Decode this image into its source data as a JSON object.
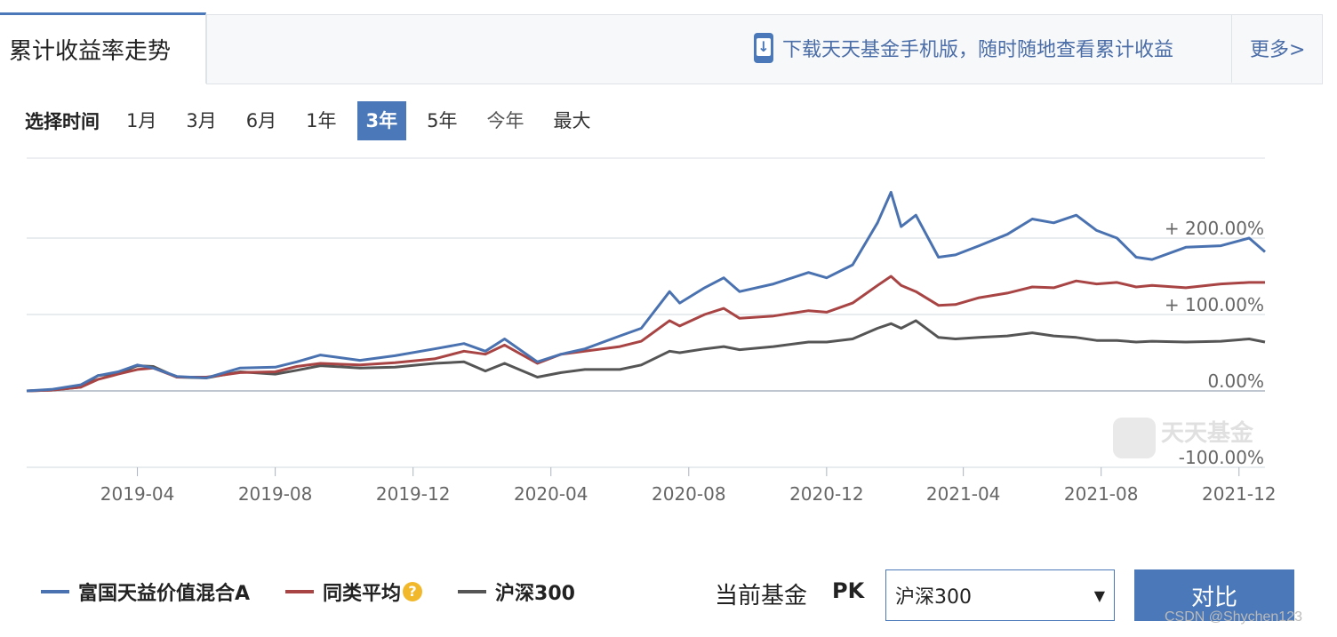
{
  "header": {
    "active_tab": "累计收益率走势",
    "promo_text": "下载天天基金手机版，随时随地查看累计收益",
    "more_label": "更多>"
  },
  "periods": {
    "label": "选择时间",
    "options": [
      "1月",
      "3月",
      "6月",
      "1年",
      "3年",
      "5年",
      "今年",
      "最大"
    ],
    "active": "3年"
  },
  "chart_watermark": "天天基金",
  "legend": {
    "fund": "富国天益价值混合A",
    "category_avg": "同类平均",
    "index": "沪深300"
  },
  "compare": {
    "label": "当前基金",
    "pk": "PK",
    "selected": "沪深300",
    "button": "对比"
  },
  "footer_watermark": "CSDN @Shychen123",
  "colors": {
    "fund": "#4a72b0",
    "category_avg": "#a84444",
    "index": "#555555",
    "accent": "#4a78b8"
  },
  "chart_data": {
    "type": "line",
    "x_ticks": [
      "2019-04",
      "2019-08",
      "2019-12",
      "2020-04",
      "2020-08",
      "2020-12",
      "2021-04",
      "2021-08",
      "2021-12"
    ],
    "y_ticks": [
      "+ 200.00%",
      "+ 100.00%",
      "0.00%",
      "-100.00%"
    ],
    "y_tick_values": [
      200,
      100,
      0,
      -100
    ],
    "ylim": [
      -100,
      300
    ],
    "xlim": [
      "2018-12-24",
      "2021-12-24"
    ],
    "grid": true,
    "series": [
      {
        "name": "富国天益价值混合A",
        "points": [
          [
            "2018-12-24",
            0
          ],
          [
            "2019-01-15",
            2
          ],
          [
            "2019-02-10",
            8
          ],
          [
            "2019-02-25",
            20
          ],
          [
            "2019-03-15",
            25
          ],
          [
            "2019-04-01",
            34
          ],
          [
            "2019-04-15",
            30
          ],
          [
            "2019-05-06",
            19
          ],
          [
            "2019-06-01",
            17
          ],
          [
            "2019-07-01",
            30
          ],
          [
            "2019-08-01",
            31
          ],
          [
            "2019-08-20",
            38
          ],
          [
            "2019-09-10",
            47
          ],
          [
            "2019-10-15",
            40
          ],
          [
            "2019-11-15",
            46
          ],
          [
            "2019-12-20",
            55
          ],
          [
            "2020-01-15",
            62
          ],
          [
            "2020-02-03",
            52
          ],
          [
            "2020-02-20",
            68
          ],
          [
            "2020-03-20",
            38
          ],
          [
            "2020-04-10",
            48
          ],
          [
            "2020-05-01",
            55
          ],
          [
            "2020-06-01",
            72
          ],
          [
            "2020-06-20",
            82
          ],
          [
            "2020-07-15",
            130
          ],
          [
            "2020-07-24",
            115
          ],
          [
            "2020-08-15",
            135
          ],
          [
            "2020-09-01",
            148
          ],
          [
            "2020-09-15",
            130
          ],
          [
            "2020-10-15",
            140
          ],
          [
            "2020-11-15",
            155
          ],
          [
            "2020-12-01",
            148
          ],
          [
            "2020-12-24",
            165
          ],
          [
            "2021-01-15",
            220
          ],
          [
            "2021-01-27",
            260
          ],
          [
            "2021-02-05",
            215
          ],
          [
            "2021-02-18",
            230
          ],
          [
            "2021-03-10",
            175
          ],
          [
            "2021-03-25",
            178
          ],
          [
            "2021-04-15",
            190
          ],
          [
            "2021-05-10",
            205
          ],
          [
            "2021-06-01",
            225
          ],
          [
            "2021-06-20",
            220
          ],
          [
            "2021-07-10",
            230
          ],
          [
            "2021-07-28",
            210
          ],
          [
            "2021-08-15",
            200
          ],
          [
            "2021-09-01",
            175
          ],
          [
            "2021-09-15",
            172
          ],
          [
            "2021-10-15",
            188
          ],
          [
            "2021-11-15",
            190
          ],
          [
            "2021-12-10",
            200
          ],
          [
            "2021-12-24",
            182
          ]
        ]
      },
      {
        "name": "同类平均",
        "points": [
          [
            "2018-12-24",
            0
          ],
          [
            "2019-01-15",
            1
          ],
          [
            "2019-02-10",
            5
          ],
          [
            "2019-02-25",
            15
          ],
          [
            "2019-03-15",
            22
          ],
          [
            "2019-04-01",
            28
          ],
          [
            "2019-04-15",
            30
          ],
          [
            "2019-05-06",
            18
          ],
          [
            "2019-06-01",
            18
          ],
          [
            "2019-07-01",
            24
          ],
          [
            "2019-08-01",
            25
          ],
          [
            "2019-08-20",
            32
          ],
          [
            "2019-09-10",
            36
          ],
          [
            "2019-10-15",
            34
          ],
          [
            "2019-11-15",
            37
          ],
          [
            "2019-12-20",
            42
          ],
          [
            "2020-01-15",
            52
          ],
          [
            "2020-02-03",
            48
          ],
          [
            "2020-02-20",
            60
          ],
          [
            "2020-03-20",
            36
          ],
          [
            "2020-04-10",
            48
          ],
          [
            "2020-05-01",
            52
          ],
          [
            "2020-06-01",
            58
          ],
          [
            "2020-06-20",
            65
          ],
          [
            "2020-07-15",
            92
          ],
          [
            "2020-07-24",
            85
          ],
          [
            "2020-08-15",
            100
          ],
          [
            "2020-09-01",
            108
          ],
          [
            "2020-09-15",
            95
          ],
          [
            "2020-10-15",
            98
          ],
          [
            "2020-11-15",
            105
          ],
          [
            "2020-12-01",
            103
          ],
          [
            "2020-12-24",
            115
          ],
          [
            "2021-01-15",
            138
          ],
          [
            "2021-01-27",
            150
          ],
          [
            "2021-02-05",
            138
          ],
          [
            "2021-02-18",
            130
          ],
          [
            "2021-03-10",
            112
          ],
          [
            "2021-03-25",
            113
          ],
          [
            "2021-04-15",
            122
          ],
          [
            "2021-05-10",
            128
          ],
          [
            "2021-06-01",
            136
          ],
          [
            "2021-06-20",
            135
          ],
          [
            "2021-07-10",
            144
          ],
          [
            "2021-07-28",
            140
          ],
          [
            "2021-08-15",
            142
          ],
          [
            "2021-09-01",
            136
          ],
          [
            "2021-09-15",
            138
          ],
          [
            "2021-10-15",
            135
          ],
          [
            "2021-11-15",
            140
          ],
          [
            "2021-12-10",
            142
          ],
          [
            "2021-12-24",
            142
          ]
        ]
      },
      {
        "name": "沪深300",
        "points": [
          [
            "2018-12-24",
            0
          ],
          [
            "2019-01-15",
            1
          ],
          [
            "2019-02-10",
            5
          ],
          [
            "2019-02-25",
            20
          ],
          [
            "2019-03-15",
            23
          ],
          [
            "2019-04-01",
            33
          ],
          [
            "2019-04-15",
            32
          ],
          [
            "2019-05-06",
            18
          ],
          [
            "2019-06-01",
            17
          ],
          [
            "2019-07-01",
            25
          ],
          [
            "2019-08-01",
            22
          ],
          [
            "2019-08-20",
            27
          ],
          [
            "2019-09-10",
            33
          ],
          [
            "2019-10-15",
            30
          ],
          [
            "2019-11-15",
            31
          ],
          [
            "2019-12-20",
            36
          ],
          [
            "2020-01-15",
            38
          ],
          [
            "2020-02-03",
            26
          ],
          [
            "2020-02-20",
            36
          ],
          [
            "2020-03-20",
            18
          ],
          [
            "2020-04-10",
            24
          ],
          [
            "2020-05-01",
            28
          ],
          [
            "2020-06-01",
            28
          ],
          [
            "2020-06-20",
            34
          ],
          [
            "2020-07-15",
            52
          ],
          [
            "2020-07-24",
            50
          ],
          [
            "2020-08-15",
            55
          ],
          [
            "2020-09-01",
            58
          ],
          [
            "2020-09-15",
            54
          ],
          [
            "2020-10-15",
            58
          ],
          [
            "2020-11-15",
            64
          ],
          [
            "2020-12-01",
            64
          ],
          [
            "2020-12-24",
            68
          ],
          [
            "2021-01-15",
            82
          ],
          [
            "2021-01-27",
            88
          ],
          [
            "2021-02-05",
            82
          ],
          [
            "2021-02-18",
            92
          ],
          [
            "2021-03-10",
            70
          ],
          [
            "2021-03-25",
            68
          ],
          [
            "2021-04-15",
            70
          ],
          [
            "2021-05-10",
            72
          ],
          [
            "2021-06-01",
            76
          ],
          [
            "2021-06-20",
            72
          ],
          [
            "2021-07-10",
            70
          ],
          [
            "2021-07-28",
            66
          ],
          [
            "2021-08-15",
            66
          ],
          [
            "2021-09-01",
            64
          ],
          [
            "2021-09-15",
            65
          ],
          [
            "2021-10-15",
            64
          ],
          [
            "2021-11-15",
            65
          ],
          [
            "2021-12-10",
            68
          ],
          [
            "2021-12-24",
            64
          ]
        ]
      }
    ]
  }
}
